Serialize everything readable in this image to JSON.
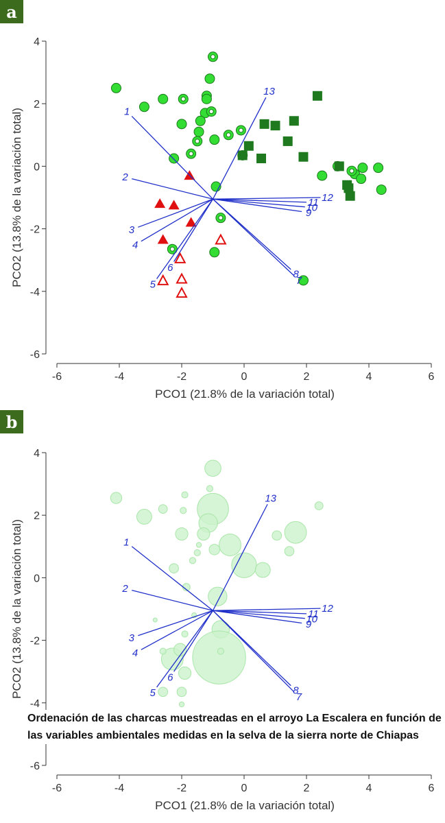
{
  "panels": [
    {
      "badge": "a"
    },
    {
      "badge": "b"
    }
  ],
  "caption": "Ordenación de las charcas muestreadas en el arroyo La Escalera en función de las variables ambientales medidas en la selva de la sierra norte de Chiapas",
  "colors": {
    "vector": "#1f2fc9",
    "circle_fill": "#33dd33",
    "circle_stroke": "#1a7a1a",
    "square": "#1f7a1f",
    "triangle": "#e01010",
    "bubble": "#ccf2cc",
    "bubble_stroke": "#a9e6a9",
    "badge_bg": "#3d6b1e"
  },
  "chart_data": [
    {
      "type": "scatter",
      "xlabel": "PCO1 (21.8% de la variación total)",
      "ylabel": "PCO2 (13.8% de la variación total)",
      "xlim": [
        -6,
        6
      ],
      "ylim": [
        -6,
        4
      ],
      "xticks": [
        "-6",
        "-4",
        "-2",
        "0",
        "2",
        "4",
        "6"
      ],
      "yticks": [
        "4",
        "2",
        "0",
        "-2",
        "-4",
        "-6"
      ],
      "origin": [
        -1.0,
        -1.05
      ],
      "vectors": [
        {
          "label": "1",
          "x": -3.6,
          "y": 1.6
        },
        {
          "label": "2",
          "x": -3.6,
          "y": -0.4
        },
        {
          "label": "3",
          "x": -3.4,
          "y": -1.95
        },
        {
          "label": "4",
          "x": -3.3,
          "y": -2.4
        },
        {
          "label": "5",
          "x": -2.8,
          "y": -3.6
        },
        {
          "label": "6",
          "x": -2.25,
          "y": -3.05
        },
        {
          "label": "7",
          "x": 1.6,
          "y": -3.5
        },
        {
          "label": "8",
          "x": 1.5,
          "y": -3.3
        },
        {
          "label": "9",
          "x": 1.85,
          "y": -1.45
        },
        {
          "label": "10",
          "x": 1.95,
          "y": -1.3
        },
        {
          "label": "11",
          "x": 2.0,
          "y": -1.15
        },
        {
          "label": "12",
          "x": 2.45,
          "y": -1.0
        },
        {
          "label": "13",
          "x": 0.7,
          "y": 2.2
        }
      ],
      "series": [
        {
          "marker": "filled-circle",
          "points": [
            [
              -4.1,
              2.5
            ],
            [
              -3.2,
              1.9
            ],
            [
              -2.6,
              2.15
            ],
            [
              -2.0,
              1.35
            ],
            [
              -1.1,
              2.8
            ],
            [
              -1.2,
              2.25
            ],
            [
              -1.2,
              2.15
            ],
            [
              -1.25,
              1.7
            ],
            [
              -1.4,
              1.45
            ],
            [
              -1.45,
              1.1
            ],
            [
              -2.25,
              0.25
            ],
            [
              -0.95,
              0.85
            ],
            [
              -0.9,
              -0.65
            ],
            [
              -0.95,
              -2.75
            ],
            [
              1.9,
              -3.65
            ],
            [
              2.5,
              -0.3
            ],
            [
              3.55,
              -0.25
            ],
            [
              3.8,
              -0.05
            ],
            [
              3.75,
              -0.4
            ],
            [
              4.3,
              -0.05
            ],
            [
              4.4,
              -0.75
            ],
            [
              3.0,
              0.0
            ]
          ]
        },
        {
          "marker": "ring-circle",
          "points": [
            [
              -1.0,
              3.5
            ],
            [
              -1.95,
              2.15
            ],
            [
              -1.05,
              1.75
            ],
            [
              -1.5,
              0.8
            ],
            [
              -1.7,
              0.4
            ],
            [
              -0.5,
              1.0
            ],
            [
              -0.1,
              1.15
            ],
            [
              -0.05,
              0.35
            ],
            [
              -0.75,
              -1.65
            ],
            [
              -2.3,
              -2.65
            ],
            [
              3.45,
              -0.15
            ]
          ]
        },
        {
          "marker": "filled-square",
          "points": [
            [
              2.35,
              2.25
            ],
            [
              0.65,
              1.35
            ],
            [
              1.0,
              1.3
            ],
            [
              1.6,
              1.45
            ],
            [
              1.4,
              0.8
            ],
            [
              0.15,
              0.65
            ],
            [
              -0.05,
              0.35
            ],
            [
              0.55,
              0.25
            ],
            [
              1.9,
              0.3
            ],
            [
              3.05,
              0.0
            ],
            [
              3.3,
              -0.6
            ],
            [
              3.35,
              -0.7
            ],
            [
              3.4,
              -0.95
            ]
          ]
        },
        {
          "marker": "filled-triangle",
          "points": [
            [
              -1.75,
              -0.3
            ],
            [
              -2.7,
              -1.2
            ],
            [
              -2.25,
              -1.25
            ],
            [
              -1.7,
              -1.8
            ],
            [
              -2.6,
              -2.35
            ]
          ]
        },
        {
          "marker": "open-triangle",
          "points": [
            [
              -0.75,
              -2.35
            ],
            [
              -2.05,
              -2.95
            ],
            [
              -2.6,
              -3.65
            ],
            [
              -2.0,
              -3.6
            ],
            [
              -2.0,
              -4.05
            ]
          ]
        }
      ]
    },
    {
      "type": "scatter",
      "xlabel": "PCO1 (21.8% de la variación total)",
      "ylabel": "PCO2 (13.8% de la variación total)",
      "xlim": [
        -6,
        6
      ],
      "ylim": [
        -6,
        4
      ],
      "xticks": [
        "-6",
        "-4",
        "-2",
        "0",
        "2",
        "4",
        "6"
      ],
      "yticks": [
        "4",
        "2",
        "0",
        "-2",
        "-4",
        "-6"
      ],
      "origin": [
        -1.0,
        -1.05
      ],
      "vectors": [
        {
          "label": "1",
          "x": -3.6,
          "y": 1.0
        },
        {
          "label": "2",
          "x": -3.6,
          "y": -0.4
        },
        {
          "label": "3",
          "x": -3.4,
          "y": -1.85
        },
        {
          "label": "4",
          "x": -3.3,
          "y": -2.3
        },
        {
          "label": "5",
          "x": -2.8,
          "y": -3.5
        },
        {
          "label": "6",
          "x": -2.25,
          "y": -3.0
        },
        {
          "label": "7",
          "x": 1.6,
          "y": -3.65
        },
        {
          "label": "8",
          "x": 1.5,
          "y": -3.45
        },
        {
          "label": "9",
          "x": 1.85,
          "y": -1.45
        },
        {
          "label": "10",
          "x": 1.95,
          "y": -1.3
        },
        {
          "label": "11",
          "x": 2.0,
          "y": -1.15
        },
        {
          "label": "12",
          "x": 2.45,
          "y": -0.98
        },
        {
          "label": "13",
          "x": 0.75,
          "y": 2.35
        }
      ],
      "series": [
        {
          "marker": "bubble",
          "points": [
            [
              -4.1,
              2.55,
              0.18
            ],
            [
              -3.2,
              1.95,
              0.24
            ],
            [
              -2.6,
              2.2,
              0.14
            ],
            [
              -1.95,
              2.15,
              0.1
            ],
            [
              -1.0,
              3.5,
              0.26
            ],
            [
              -1.0,
              2.2,
              0.5
            ],
            [
              -1.15,
              1.75,
              0.3
            ],
            [
              -1.3,
              1.4,
              0.2
            ],
            [
              -2.0,
              1.4,
              0.2
            ],
            [
              -1.5,
              0.8,
              0.1
            ],
            [
              -1.1,
              2.85,
              0.1
            ],
            [
              -0.95,
              0.9,
              0.17
            ],
            [
              -0.45,
              1.05,
              0.35
            ],
            [
              0.0,
              0.4,
              0.4
            ],
            [
              0.6,
              0.25,
              0.24
            ],
            [
              1.05,
              1.35,
              0.15
            ],
            [
              1.65,
              1.45,
              0.35
            ],
            [
              1.45,
              0.85,
              0.15
            ],
            [
              2.4,
              2.3,
              0.13
            ],
            [
              -2.25,
              0.3,
              0.15
            ],
            [
              -1.65,
              0.55,
              0.1
            ],
            [
              -0.85,
              -0.6,
              0.3
            ],
            [
              -0.75,
              -1.65,
              0.28
            ],
            [
              -0.8,
              -2.55,
              0.85
            ],
            [
              -2.3,
              -2.6,
              0.35
            ],
            [
              -2.05,
              -2.3,
              0.2
            ],
            [
              -1.9,
              -3.05,
              0.2
            ],
            [
              -2.6,
              -3.65,
              0.15
            ],
            [
              -2.0,
              -3.65,
              0.15
            ],
            [
              -2.0,
              -4.05,
              0.08
            ],
            [
              -0.75,
              -2.35,
              0.1
            ],
            [
              -2.85,
              -1.35,
              0.06
            ],
            [
              -2.6,
              -2.35,
              0.1
            ],
            [
              -1.85,
              -0.3,
              0.12
            ],
            [
              -1.9,
              -1.8,
              0.1
            ],
            [
              -1.6,
              -1.2,
              0.08
            ],
            [
              -1.9,
              2.65,
              0.1
            ],
            [
              -1.45,
              1.05,
              0.08
            ]
          ]
        }
      ]
    }
  ]
}
